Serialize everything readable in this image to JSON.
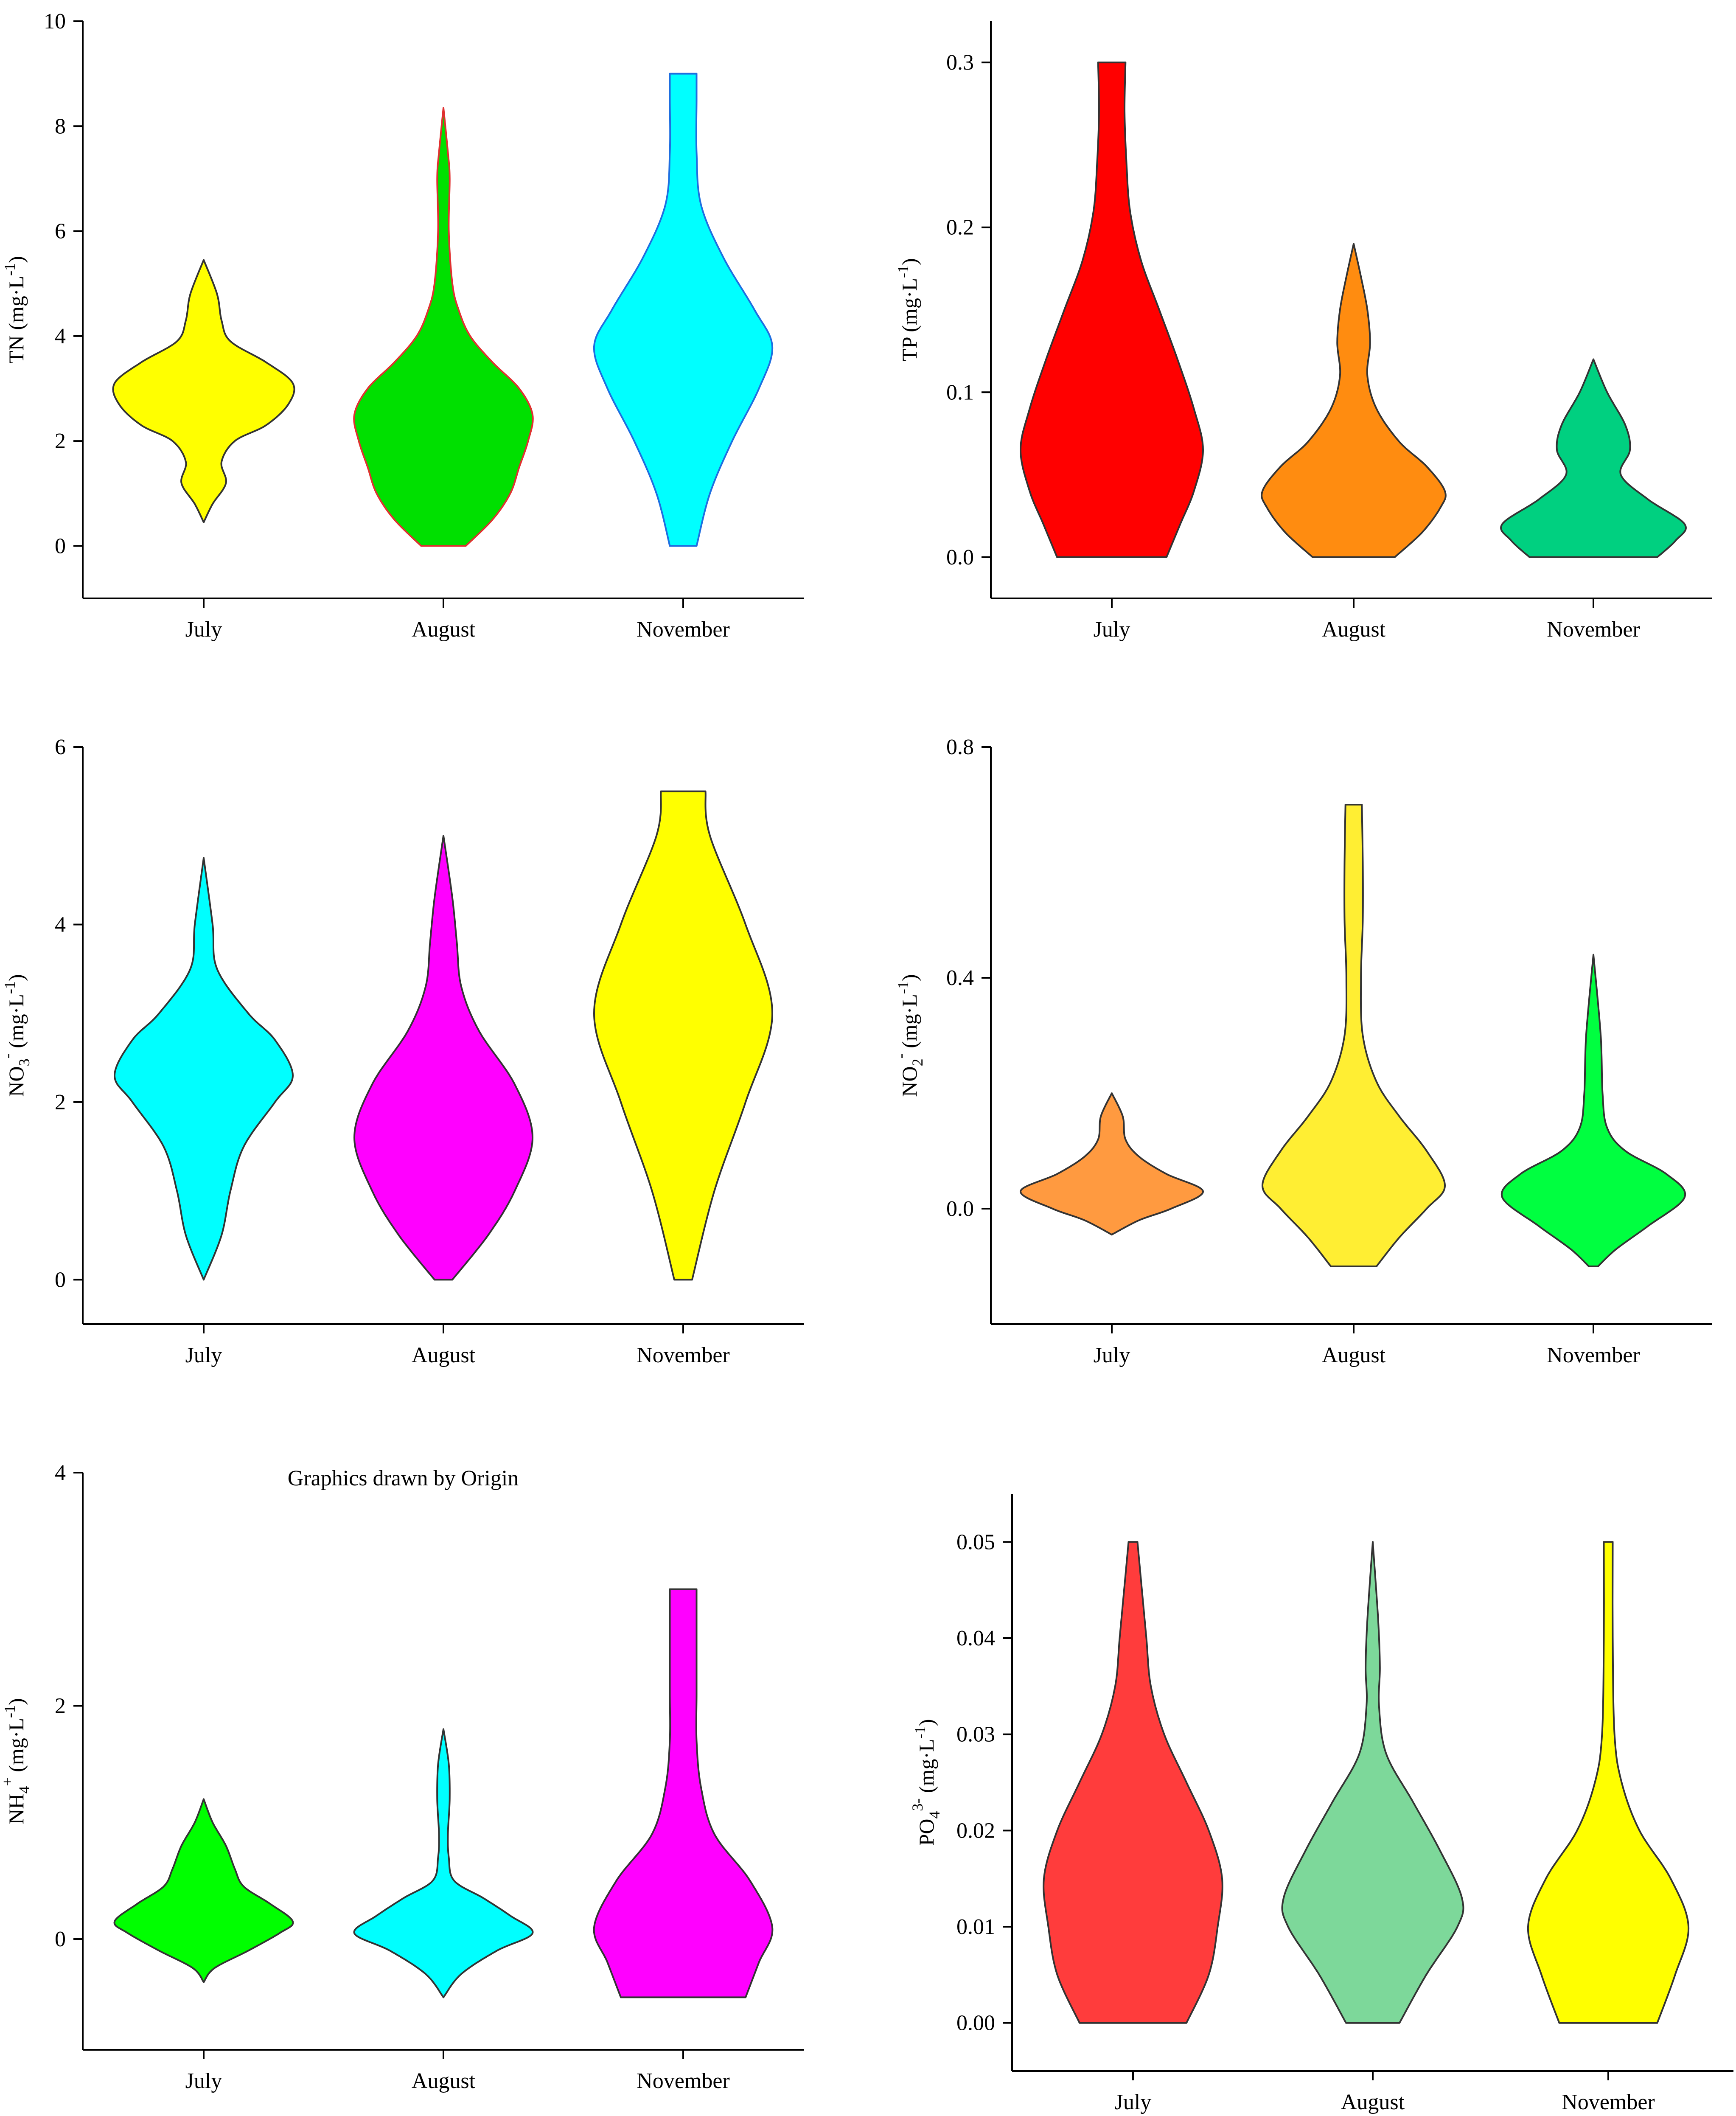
{
  "chart_data": [
    {
      "type": "violin",
      "ylabel": "TN (mg·L-1)",
      "ylabel_parts": {
        "main": "TN (mg·L",
        "sup": "-1",
        "end": ")"
      },
      "categories": [
        "July",
        "August",
        "November"
      ],
      "ylim": [
        -1,
        10
      ],
      "yticks": [
        0,
        2,
        4,
        6,
        8,
        10
      ],
      "tick_labels": [
        "0",
        "2",
        "4",
        "6",
        "8",
        "10"
      ],
      "violins": [
        {
          "category": "July",
          "color": "#FFFF00",
          "edge": "#333333",
          "profile": [
            [
              0.45,
              0
            ],
            [
              0.8,
              0.1
            ],
            [
              1.2,
              0.25
            ],
            [
              1.6,
              0.2
            ],
            [
              2.0,
              0.35
            ],
            [
              2.3,
              0.7
            ],
            [
              2.7,
              0.95
            ],
            [
              3.1,
              1.0
            ],
            [
              3.5,
              0.7
            ],
            [
              3.9,
              0.3
            ],
            [
              4.3,
              0.2
            ],
            [
              4.8,
              0.15
            ],
            [
              5.45,
              0
            ]
          ]
        },
        {
          "category": "August",
          "color": "#00E000",
          "edge": "#E03030",
          "profile": [
            [
              0.0,
              0.25
            ],
            [
              0.5,
              0.55
            ],
            [
              1.0,
              0.75
            ],
            [
              1.5,
              0.85
            ],
            [
              2.0,
              0.95
            ],
            [
              2.5,
              1.0
            ],
            [
              3.0,
              0.85
            ],
            [
              3.5,
              0.55
            ],
            [
              4.0,
              0.3
            ],
            [
              4.5,
              0.17
            ],
            [
              5.0,
              0.1
            ],
            [
              6.0,
              0.06
            ],
            [
              7.0,
              0.07
            ],
            [
              7.5,
              0.05
            ],
            [
              8.35,
              0
            ]
          ]
        },
        {
          "category": "November",
          "color": "#00FFFF",
          "edge": "#1E6EE0",
          "profile": [
            [
              0.0,
              0.15
            ],
            [
              1.0,
              0.3
            ],
            [
              2.0,
              0.55
            ],
            [
              3.0,
              0.85
            ],
            [
              3.8,
              1.0
            ],
            [
              4.5,
              0.8
            ],
            [
              5.5,
              0.45
            ],
            [
              6.5,
              0.2
            ],
            [
              7.5,
              0.15
            ],
            [
              8.5,
              0.15
            ],
            [
              9.0,
              0.15
            ]
          ]
        }
      ]
    },
    {
      "type": "violin",
      "ylabel": "TP (mg·L-1)",
      "ylabel_parts": {
        "main": "TP  (mg·L",
        "sup": "-1",
        "end": ")"
      },
      "categories": [
        "July",
        "August",
        "November"
      ],
      "ylim": [
        -0.025,
        0.325
      ],
      "yticks": [
        0.0,
        0.1,
        0.2,
        0.3
      ],
      "tick_labels": [
        "0.0",
        "0.1",
        "0.2",
        "0.3"
      ],
      "violins": [
        {
          "category": "July",
          "color": "#FF0000",
          "edge": "#333333",
          "profile": [
            [
              0.0,
              0.6
            ],
            [
              0.02,
              0.75
            ],
            [
              0.04,
              0.9
            ],
            [
              0.065,
              1.0
            ],
            [
              0.09,
              0.9
            ],
            [
              0.12,
              0.72
            ],
            [
              0.15,
              0.52
            ],
            [
              0.18,
              0.32
            ],
            [
              0.21,
              0.2
            ],
            [
              0.24,
              0.16
            ],
            [
              0.27,
              0.14
            ],
            [
              0.3,
              0.15
            ]
          ]
        },
        {
          "category": "August",
          "color": "#FF8C10",
          "edge": "#333333",
          "profile": [
            [
              0.0,
              0.45
            ],
            [
              0.015,
              0.75
            ],
            [
              0.03,
              0.95
            ],
            [
              0.04,
              1.0
            ],
            [
              0.055,
              0.8
            ],
            [
              0.07,
              0.5
            ],
            [
              0.09,
              0.25
            ],
            [
              0.11,
              0.15
            ],
            [
              0.13,
              0.18
            ],
            [
              0.15,
              0.15
            ],
            [
              0.17,
              0.08
            ],
            [
              0.19,
              0
            ]
          ]
        },
        {
          "category": "November",
          "color": "#00D080",
          "edge": "#333333",
          "profile": [
            [
              0.0,
              0.7
            ],
            [
              0.01,
              0.9
            ],
            [
              0.02,
              1.0
            ],
            [
              0.035,
              0.6
            ],
            [
              0.05,
              0.3
            ],
            [
              0.065,
              0.4
            ],
            [
              0.08,
              0.35
            ],
            [
              0.1,
              0.15
            ],
            [
              0.12,
              0
            ]
          ]
        }
      ]
    },
    {
      "type": "violin",
      "ylabel": "NO3- (mg·L-1)",
      "ylabel_parts": {
        "main": "NO",
        "sub": "3",
        "sup2": "-",
        "mid": "  (mg·L",
        "sup": "-1",
        "end": ")"
      },
      "categories": [
        "July",
        "August",
        "November"
      ],
      "ylim": [
        -0.5,
        6
      ],
      "yticks": [
        0,
        2,
        4,
        6
      ],
      "tick_labels": [
        "0",
        "2",
        "4",
        "6"
      ],
      "violins": [
        {
          "category": "July",
          "color": "#00FFFF",
          "edge": "#333333",
          "profile": [
            [
              0.0,
              0
            ],
            [
              0.5,
              0.2
            ],
            [
              1.0,
              0.3
            ],
            [
              1.5,
              0.45
            ],
            [
              2.0,
              0.8
            ],
            [
              2.3,
              1.0
            ],
            [
              2.7,
              0.8
            ],
            [
              3.0,
              0.5
            ],
            [
              3.5,
              0.15
            ],
            [
              4.0,
              0.1
            ],
            [
              4.75,
              0
            ]
          ]
        },
        {
          "category": "August",
          "color": "#FF00FF",
          "edge": "#333333",
          "profile": [
            [
              0.0,
              0.1
            ],
            [
              0.5,
              0.5
            ],
            [
              1.0,
              0.8
            ],
            [
              1.6,
              1.0
            ],
            [
              2.2,
              0.8
            ],
            [
              2.8,
              0.4
            ],
            [
              3.3,
              0.2
            ],
            [
              3.8,
              0.15
            ],
            [
              4.3,
              0.1
            ],
            [
              5.0,
              0
            ]
          ]
        },
        {
          "category": "November",
          "color": "#FFFF00",
          "edge": "#333333",
          "profile": [
            [
              0.0,
              0.1
            ],
            [
              1.0,
              0.35
            ],
            [
              2.0,
              0.7
            ],
            [
              3.0,
              1.0
            ],
            [
              4.0,
              0.7
            ],
            [
              5.0,
              0.3
            ],
            [
              5.5,
              0.25
            ]
          ]
        }
      ]
    },
    {
      "type": "violin",
      "ylabel": "NO2- (mg·L-1)",
      "ylabel_parts": {
        "main": "NO",
        "sub": "2",
        "sup2": "-",
        "mid": "  (mg·L",
        "sup": "-1",
        "end": ")"
      },
      "categories": [
        "July",
        "August",
        "November"
      ],
      "ylim": [
        -0.2,
        0.8
      ],
      "yticks": [
        0.0,
        0.4,
        0.8
      ],
      "tick_labels": [
        "0.0",
        "0.4",
        "0.8"
      ],
      "violins": [
        {
          "category": "July",
          "color": "#FF9A40",
          "edge": "#333333",
          "profile": [
            [
              -0.045,
              0
            ],
            [
              -0.02,
              0.3
            ],
            [
              0.0,
              0.65
            ],
            [
              0.03,
              1.0
            ],
            [
              0.06,
              0.6
            ],
            [
              0.09,
              0.3
            ],
            [
              0.12,
              0.15
            ],
            [
              0.16,
              0.12
            ],
            [
              0.2,
              0
            ]
          ]
        },
        {
          "category": "August",
          "color": "#FFEE33",
          "edge": "#333333",
          "profile": [
            [
              -0.1,
              0.25
            ],
            [
              -0.05,
              0.5
            ],
            [
              0.0,
              0.8
            ],
            [
              0.04,
              1.0
            ],
            [
              0.1,
              0.8
            ],
            [
              0.16,
              0.5
            ],
            [
              0.22,
              0.25
            ],
            [
              0.3,
              0.1
            ],
            [
              0.4,
              0.08
            ],
            [
              0.5,
              0.1
            ],
            [
              0.6,
              0.1
            ],
            [
              0.7,
              0.09
            ]
          ]
        },
        {
          "category": "November",
          "color": "#00FF40",
          "edge": "#333333",
          "profile": [
            [
              -0.1,
              0.05
            ],
            [
              -0.07,
              0.25
            ],
            [
              -0.03,
              0.6
            ],
            [
              0.02,
              1.0
            ],
            [
              0.06,
              0.8
            ],
            [
              0.1,
              0.35
            ],
            [
              0.14,
              0.15
            ],
            [
              0.2,
              0.1
            ],
            [
              0.3,
              0.08
            ],
            [
              0.44,
              0
            ]
          ]
        }
      ]
    },
    {
      "type": "violin",
      "ylabel": "NH4+ (mg·L-1)",
      "ylabel_parts": {
        "main": "NH",
        "sub": "4",
        "sup2": "+",
        "mid": "  (mg·L",
        "sup": "-1",
        "end": ")"
      },
      "categories": [
        "July",
        "August",
        "November"
      ],
      "ylim": [
        -0.95,
        4
      ],
      "yticks": [
        0,
        2,
        4
      ],
      "tick_labels": [
        "0",
        "2",
        "4"
      ],
      "violins": [
        {
          "category": "July",
          "color": "#00FF00",
          "edge": "#333333",
          "profile": [
            [
              -0.37,
              0
            ],
            [
              -0.25,
              0.12
            ],
            [
              -0.1,
              0.5
            ],
            [
              0.05,
              0.85
            ],
            [
              0.15,
              1.0
            ],
            [
              0.3,
              0.75
            ],
            [
              0.45,
              0.45
            ],
            [
              0.6,
              0.35
            ],
            [
              0.8,
              0.25
            ],
            [
              1.0,
              0.1
            ],
            [
              1.2,
              0
            ]
          ]
        },
        {
          "category": "August",
          "color": "#00FFFF",
          "edge": "#333333",
          "profile": [
            [
              -0.5,
              0
            ],
            [
              -0.3,
              0.2
            ],
            [
              -0.1,
              0.6
            ],
            [
              0.05,
              1.0
            ],
            [
              0.2,
              0.75
            ],
            [
              0.35,
              0.45
            ],
            [
              0.5,
              0.12
            ],
            [
              0.7,
              0.06
            ],
            [
              0.9,
              0.05
            ],
            [
              1.2,
              0.07
            ],
            [
              1.5,
              0.06
            ],
            [
              1.8,
              0
            ]
          ]
        },
        {
          "category": "November",
          "color": "#FF00FF",
          "edge": "#333333",
          "profile": [
            [
              -0.5,
              0.7
            ],
            [
              -0.2,
              0.85
            ],
            [
              0.1,
              1.0
            ],
            [
              0.5,
              0.75
            ],
            [
              0.9,
              0.35
            ],
            [
              1.3,
              0.2
            ],
            [
              1.7,
              0.15
            ],
            [
              2.1,
              0.15
            ],
            [
              2.5,
              0.15
            ],
            [
              3.0,
              0.15
            ]
          ]
        }
      ]
    },
    {
      "type": "violin",
      "ylabel": "PO43- (mg·L-1)",
      "ylabel_parts": {
        "main": "PO",
        "sub": "4",
        "sup2": "3-",
        "mid": "  (mg·L",
        "sup": "-1",
        "end": ")"
      },
      "categories": [
        "July",
        "August",
        "November"
      ],
      "ylim": [
        -0.005,
        0.055
      ],
      "yticks": [
        0.0,
        0.01,
        0.02,
        0.03,
        0.04,
        0.05
      ],
      "tick_labels": [
        "0.00",
        "0.01",
        "0.02",
        "0.03",
        "0.04",
        "0.05"
      ],
      "violins": [
        {
          "category": "July",
          "color": "#FF3C3C",
          "edge": "#333333",
          "profile": [
            [
              0.0,
              0.6
            ],
            [
              0.005,
              0.85
            ],
            [
              0.01,
              0.95
            ],
            [
              0.015,
              1.0
            ],
            [
              0.02,
              0.85
            ],
            [
              0.025,
              0.6
            ],
            [
              0.03,
              0.35
            ],
            [
              0.035,
              0.2
            ],
            [
              0.04,
              0.15
            ],
            [
              0.045,
              0.1
            ],
            [
              0.05,
              0.05
            ]
          ]
        },
        {
          "category": "August",
          "color": "#7DD89A",
          "edge": "#333333",
          "profile": [
            [
              0.0,
              0.3
            ],
            [
              0.005,
              0.6
            ],
            [
              0.01,
              0.95
            ],
            [
              0.013,
              1.0
            ],
            [
              0.018,
              0.75
            ],
            [
              0.023,
              0.45
            ],
            [
              0.028,
              0.15
            ],
            [
              0.033,
              0.07
            ],
            [
              0.037,
              0.08
            ],
            [
              0.042,
              0.06
            ],
            [
              0.05,
              0
            ]
          ]
        },
        {
          "category": "November",
          "color": "#FFFF00",
          "edge": "#333333",
          "profile": [
            [
              0.0,
              0.55
            ],
            [
              0.005,
              0.75
            ],
            [
              0.01,
              0.9
            ],
            [
              0.015,
              0.7
            ],
            [
              0.02,
              0.35
            ],
            [
              0.025,
              0.15
            ],
            [
              0.03,
              0.07
            ],
            [
              0.04,
              0.05
            ],
            [
              0.05,
              0.05
            ]
          ]
        }
      ]
    }
  ],
  "annotation": "Graphics drawn by Origin"
}
